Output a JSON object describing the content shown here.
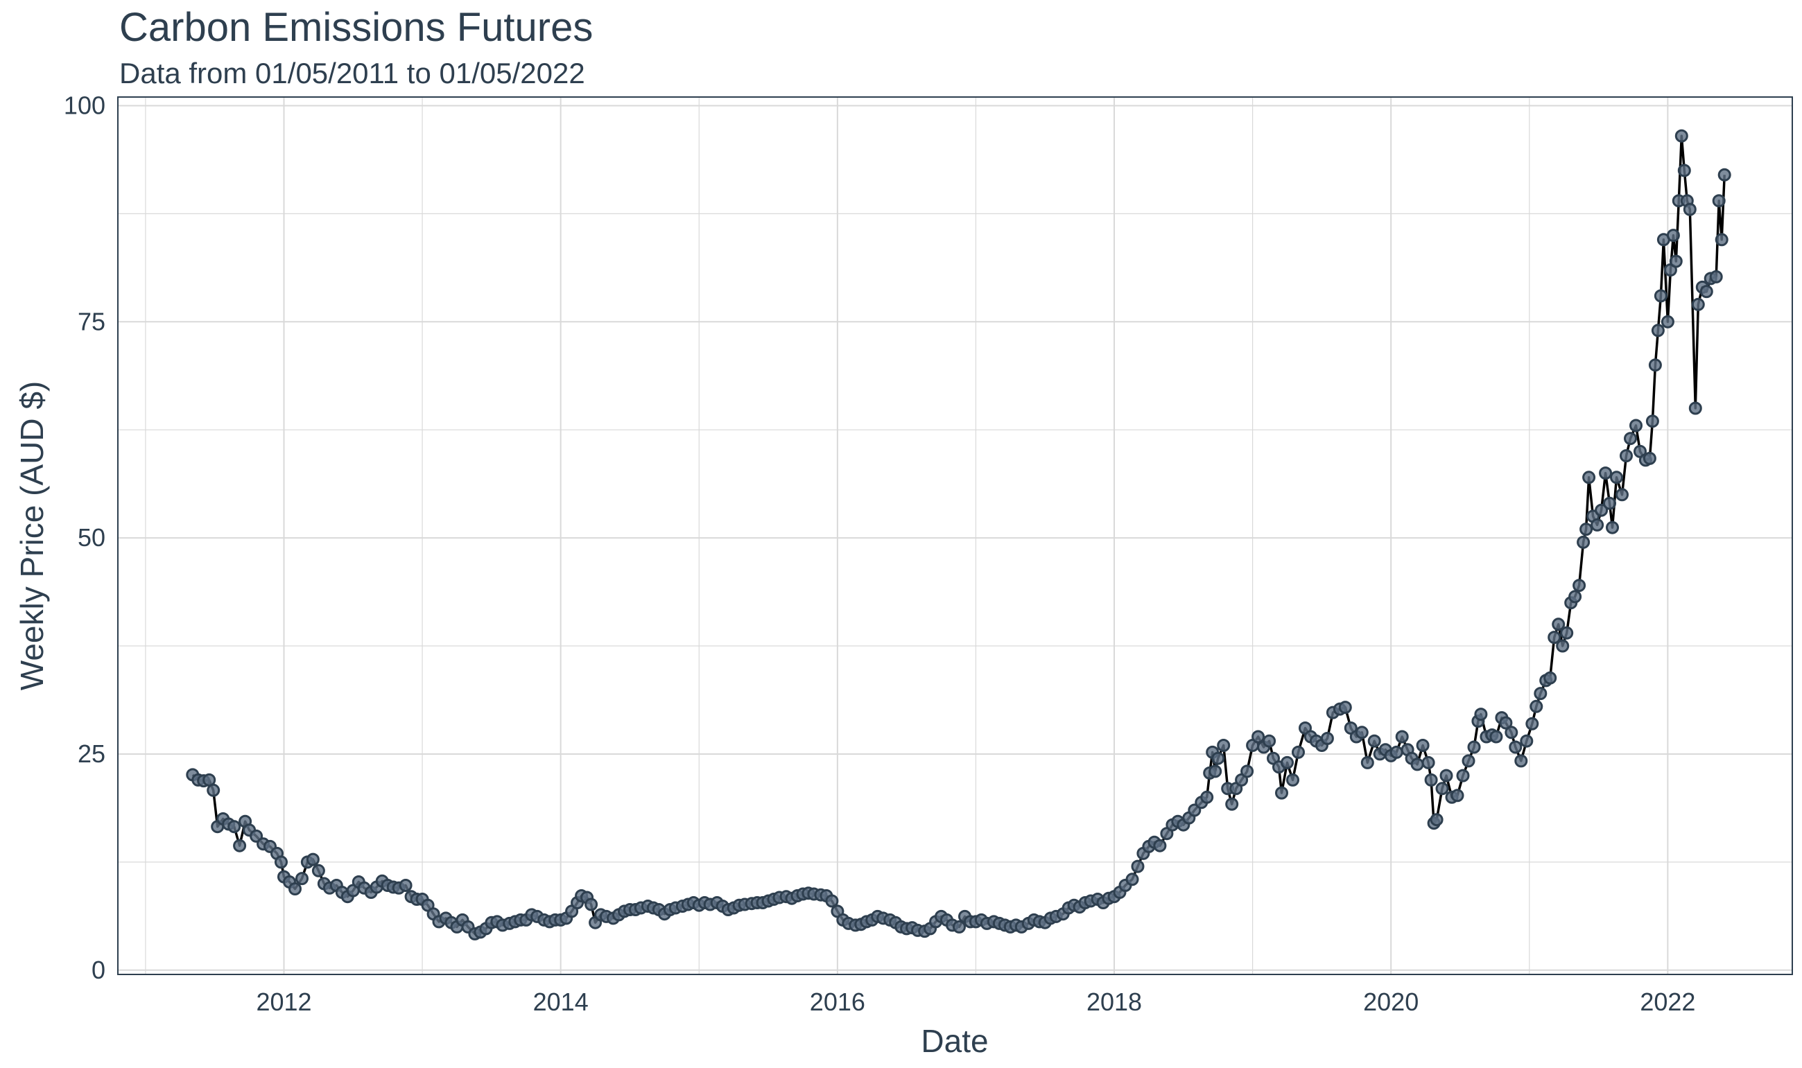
{
  "chart_data": {
    "type": "line",
    "title": "Carbon Emissions Futures",
    "subtitle": "Data from 01/05/2011 to 01/05/2022",
    "xlabel": "Date",
    "ylabel": "Weekly Price (AUD $)",
    "xlim": [
      2010.8,
      2022.9
    ],
    "ylim": [
      -0.5,
      101
    ],
    "x_ticks": [
      2012,
      2014,
      2016,
      2018,
      2020,
      2022
    ],
    "y_ticks": [
      0,
      25,
      50,
      75,
      100
    ],
    "grid": true,
    "legend": "none",
    "colors": {
      "line": "#000000",
      "point_fill": "#5f7184",
      "point_edge": "#2e3f4f",
      "grid": "#d9d9d9",
      "border": "#2e3f4f"
    },
    "series": [
      {
        "points": [
          [
            2011.34,
            22.6
          ],
          [
            2011.38,
            22.0
          ],
          [
            2011.42,
            21.9
          ],
          [
            2011.46,
            22.0
          ],
          [
            2011.49,
            20.8
          ],
          [
            2011.52,
            16.6
          ],
          [
            2011.56,
            17.5
          ],
          [
            2011.6,
            16.9
          ],
          [
            2011.64,
            16.6
          ],
          [
            2011.68,
            14.4
          ],
          [
            2011.72,
            17.2
          ],
          [
            2011.75,
            16.2
          ],
          [
            2011.8,
            15.5
          ],
          [
            2011.85,
            14.6
          ],
          [
            2011.9,
            14.3
          ],
          [
            2011.95,
            13.5
          ],
          [
            2011.98,
            12.5
          ],
          [
            2012.0,
            10.8
          ],
          [
            2012.04,
            10.2
          ],
          [
            2012.08,
            9.4
          ],
          [
            2012.13,
            10.6
          ],
          [
            2012.17,
            12.5
          ],
          [
            2012.21,
            12.8
          ],
          [
            2012.25,
            11.5
          ],
          [
            2012.29,
            10.0
          ],
          [
            2012.33,
            9.5
          ],
          [
            2012.38,
            9.8
          ],
          [
            2012.42,
            9.0
          ],
          [
            2012.46,
            8.5
          ],
          [
            2012.5,
            9.2
          ],
          [
            2012.54,
            10.2
          ],
          [
            2012.58,
            9.5
          ],
          [
            2012.63,
            9.0
          ],
          [
            2012.67,
            9.6
          ],
          [
            2012.71,
            10.3
          ],
          [
            2012.75,
            9.8
          ],
          [
            2012.79,
            9.6
          ],
          [
            2012.83,
            9.5
          ],
          [
            2012.88,
            9.8
          ],
          [
            2012.92,
            8.5
          ],
          [
            2012.96,
            8.2
          ],
          [
            2013.0,
            8.2
          ],
          [
            2013.04,
            7.5
          ],
          [
            2013.08,
            6.5
          ],
          [
            2013.12,
            5.6
          ],
          [
            2013.17,
            6.0
          ],
          [
            2013.21,
            5.5
          ],
          [
            2013.25,
            5.0
          ],
          [
            2013.29,
            5.8
          ],
          [
            2013.33,
            5.0
          ],
          [
            2013.38,
            4.2
          ],
          [
            2013.42,
            4.4
          ],
          [
            2013.46,
            4.8
          ],
          [
            2013.5,
            5.5
          ],
          [
            2013.54,
            5.6
          ],
          [
            2013.58,
            5.2
          ],
          [
            2013.63,
            5.4
          ],
          [
            2013.67,
            5.6
          ],
          [
            2013.71,
            5.8
          ],
          [
            2013.75,
            5.8
          ],
          [
            2013.79,
            6.4
          ],
          [
            2013.83,
            6.2
          ],
          [
            2013.88,
            5.8
          ],
          [
            2013.92,
            5.6
          ],
          [
            2013.96,
            5.8
          ],
          [
            2014.0,
            5.8
          ],
          [
            2014.04,
            6.0
          ],
          [
            2014.08,
            6.8
          ],
          [
            2014.12,
            7.8
          ],
          [
            2014.15,
            8.6
          ],
          [
            2014.19,
            8.4
          ],
          [
            2014.22,
            7.6
          ],
          [
            2014.25,
            5.5
          ],
          [
            2014.29,
            6.4
          ],
          [
            2014.33,
            6.2
          ],
          [
            2014.38,
            6.0
          ],
          [
            2014.42,
            6.4
          ],
          [
            2014.46,
            6.8
          ],
          [
            2014.5,
            7.0
          ],
          [
            2014.54,
            7.0
          ],
          [
            2014.58,
            7.2
          ],
          [
            2014.63,
            7.4
          ],
          [
            2014.67,
            7.2
          ],
          [
            2014.71,
            7.0
          ],
          [
            2014.75,
            6.5
          ],
          [
            2014.79,
            7.0
          ],
          [
            2014.83,
            7.2
          ],
          [
            2014.88,
            7.4
          ],
          [
            2014.92,
            7.6
          ],
          [
            2014.96,
            7.8
          ],
          [
            2015.0,
            7.5
          ],
          [
            2015.04,
            7.8
          ],
          [
            2015.08,
            7.6
          ],
          [
            2015.13,
            7.8
          ],
          [
            2015.17,
            7.4
          ],
          [
            2015.21,
            7.0
          ],
          [
            2015.25,
            7.2
          ],
          [
            2015.29,
            7.5
          ],
          [
            2015.33,
            7.6
          ],
          [
            2015.38,
            7.7
          ],
          [
            2015.42,
            7.8
          ],
          [
            2015.46,
            7.8
          ],
          [
            2015.5,
            8.0
          ],
          [
            2015.54,
            8.2
          ],
          [
            2015.58,
            8.4
          ],
          [
            2015.63,
            8.5
          ],
          [
            2015.67,
            8.3
          ],
          [
            2015.71,
            8.6
          ],
          [
            2015.75,
            8.8
          ],
          [
            2015.79,
            8.9
          ],
          [
            2015.83,
            8.8
          ],
          [
            2015.88,
            8.7
          ],
          [
            2015.92,
            8.6
          ],
          [
            2015.96,
            8.0
          ],
          [
            2016.0,
            6.8
          ],
          [
            2016.04,
            5.8
          ],
          [
            2016.08,
            5.4
          ],
          [
            2016.13,
            5.2
          ],
          [
            2016.17,
            5.3
          ],
          [
            2016.21,
            5.6
          ],
          [
            2016.25,
            5.8
          ],
          [
            2016.29,
            6.2
          ],
          [
            2016.33,
            6.0
          ],
          [
            2016.38,
            5.8
          ],
          [
            2016.42,
            5.5
          ],
          [
            2016.46,
            5.0
          ],
          [
            2016.5,
            4.8
          ],
          [
            2016.54,
            4.9
          ],
          [
            2016.58,
            4.6
          ],
          [
            2016.63,
            4.5
          ],
          [
            2016.67,
            4.8
          ],
          [
            2016.71,
            5.6
          ],
          [
            2016.75,
            6.2
          ],
          [
            2016.79,
            5.8
          ],
          [
            2016.83,
            5.2
          ],
          [
            2016.88,
            5.0
          ],
          [
            2016.92,
            6.2
          ],
          [
            2016.96,
            5.6
          ],
          [
            2017.0,
            5.6
          ],
          [
            2017.04,
            5.8
          ],
          [
            2017.08,
            5.4
          ],
          [
            2017.13,
            5.6
          ],
          [
            2017.17,
            5.4
          ],
          [
            2017.21,
            5.2
          ],
          [
            2017.25,
            5.0
          ],
          [
            2017.29,
            5.2
          ],
          [
            2017.33,
            5.0
          ],
          [
            2017.38,
            5.4
          ],
          [
            2017.42,
            5.8
          ],
          [
            2017.46,
            5.6
          ],
          [
            2017.5,
            5.5
          ],
          [
            2017.54,
            6.0
          ],
          [
            2017.58,
            6.2
          ],
          [
            2017.63,
            6.5
          ],
          [
            2017.67,
            7.2
          ],
          [
            2017.71,
            7.5
          ],
          [
            2017.75,
            7.3
          ],
          [
            2017.79,
            7.8
          ],
          [
            2017.83,
            8.0
          ],
          [
            2017.88,
            8.2
          ],
          [
            2017.92,
            7.8
          ],
          [
            2017.96,
            8.3
          ],
          [
            2018.0,
            8.5
          ],
          [
            2018.04,
            9.0
          ],
          [
            2018.08,
            9.8
          ],
          [
            2018.13,
            10.5
          ],
          [
            2018.17,
            12.0
          ],
          [
            2018.21,
            13.5
          ],
          [
            2018.25,
            14.3
          ],
          [
            2018.29,
            14.8
          ],
          [
            2018.33,
            14.4
          ],
          [
            2018.38,
            15.8
          ],
          [
            2018.42,
            16.8
          ],
          [
            2018.46,
            17.2
          ],
          [
            2018.5,
            16.8
          ],
          [
            2018.54,
            17.6
          ],
          [
            2018.58,
            18.5
          ],
          [
            2018.63,
            19.4
          ],
          [
            2018.67,
            20.0
          ],
          [
            2018.69,
            22.8
          ],
          [
            2018.71,
            25.2
          ],
          [
            2018.73,
            23.0
          ],
          [
            2018.75,
            24.5
          ],
          [
            2018.79,
            26.0
          ],
          [
            2018.82,
            21.0
          ],
          [
            2018.85,
            19.2
          ],
          [
            2018.88,
            21.0
          ],
          [
            2018.92,
            22.0
          ],
          [
            2018.96,
            23.0
          ],
          [
            2019.0,
            26.0
          ],
          [
            2019.04,
            27.0
          ],
          [
            2019.08,
            25.8
          ],
          [
            2019.12,
            26.5
          ],
          [
            2019.15,
            24.5
          ],
          [
            2019.19,
            23.5
          ],
          [
            2019.21,
            20.5
          ],
          [
            2019.25,
            24.0
          ],
          [
            2019.29,
            22.0
          ],
          [
            2019.33,
            25.2
          ],
          [
            2019.38,
            28.0
          ],
          [
            2019.42,
            27.0
          ],
          [
            2019.46,
            26.5
          ],
          [
            2019.5,
            26.0
          ],
          [
            2019.54,
            26.8
          ],
          [
            2019.58,
            29.8
          ],
          [
            2019.63,
            30.2
          ],
          [
            2019.67,
            30.4
          ],
          [
            2019.71,
            28.0
          ],
          [
            2019.75,
            27.0
          ],
          [
            2019.79,
            27.5
          ],
          [
            2019.83,
            24.0
          ],
          [
            2019.88,
            26.5
          ],
          [
            2019.92,
            25.0
          ],
          [
            2019.96,
            25.5
          ],
          [
            2020.0,
            24.8
          ],
          [
            2020.04,
            25.2
          ],
          [
            2020.08,
            27.0
          ],
          [
            2020.12,
            25.5
          ],
          [
            2020.15,
            24.5
          ],
          [
            2020.19,
            23.8
          ],
          [
            2020.23,
            26.0
          ],
          [
            2020.27,
            24.0
          ],
          [
            2020.29,
            22.0
          ],
          [
            2020.31,
            17.0
          ],
          [
            2020.33,
            17.4
          ],
          [
            2020.37,
            21.0
          ],
          [
            2020.4,
            22.5
          ],
          [
            2020.44,
            20.0
          ],
          [
            2020.48,
            20.2
          ],
          [
            2020.52,
            22.5
          ],
          [
            2020.56,
            24.2
          ],
          [
            2020.6,
            25.8
          ],
          [
            2020.63,
            28.8
          ],
          [
            2020.65,
            29.6
          ],
          [
            2020.69,
            27.0
          ],
          [
            2020.73,
            27.2
          ],
          [
            2020.76,
            27.0
          ],
          [
            2020.8,
            29.2
          ],
          [
            2020.83,
            28.6
          ],
          [
            2020.87,
            27.5
          ],
          [
            2020.9,
            25.8
          ],
          [
            2020.94,
            24.2
          ],
          [
            2020.98,
            26.5
          ],
          [
            2021.02,
            28.5
          ],
          [
            2021.05,
            30.5
          ],
          [
            2021.08,
            32.0
          ],
          [
            2021.12,
            33.5
          ],
          [
            2021.15,
            33.8
          ],
          [
            2021.18,
            38.5
          ],
          [
            2021.21,
            40.0
          ],
          [
            2021.24,
            37.5
          ],
          [
            2021.27,
            39.0
          ],
          [
            2021.3,
            42.5
          ],
          [
            2021.33,
            43.2
          ],
          [
            2021.36,
            44.5
          ],
          [
            2021.39,
            49.5
          ],
          [
            2021.41,
            51.0
          ],
          [
            2021.43,
            57.0
          ],
          [
            2021.46,
            52.5
          ],
          [
            2021.49,
            51.5
          ],
          [
            2021.52,
            53.2
          ],
          [
            2021.55,
            57.5
          ],
          [
            2021.58,
            54.0
          ],
          [
            2021.6,
            51.2
          ],
          [
            2021.63,
            57.0
          ],
          [
            2021.67,
            55.0
          ],
          [
            2021.7,
            59.5
          ],
          [
            2021.73,
            61.5
          ],
          [
            2021.77,
            63.0
          ],
          [
            2021.8,
            60.0
          ],
          [
            2021.84,
            59.0
          ],
          [
            2021.87,
            59.2
          ],
          [
            2021.89,
            63.5
          ],
          [
            2021.91,
            70.0
          ],
          [
            2021.93,
            74.0
          ],
          [
            2021.95,
            78.0
          ],
          [
            2021.97,
            84.5
          ],
          [
            2022.0,
            75.0
          ],
          [
            2022.02,
            81.0
          ],
          [
            2022.04,
            85.0
          ],
          [
            2022.06,
            82.0
          ],
          [
            2022.08,
            89.0
          ],
          [
            2022.1,
            96.5
          ],
          [
            2022.12,
            92.5
          ],
          [
            2022.14,
            89.0
          ],
          [
            2022.16,
            88.0
          ],
          [
            2022.2,
            65.0
          ],
          [
            2022.22,
            77.0
          ],
          [
            2022.25,
            79.0
          ],
          [
            2022.28,
            78.5
          ],
          [
            2022.31,
            80.0
          ],
          [
            2022.35,
            80.2
          ],
          [
            2022.37,
            89.0
          ],
          [
            2022.39,
            84.5
          ],
          [
            2022.41,
            92.0
          ]
        ]
      }
    ]
  }
}
